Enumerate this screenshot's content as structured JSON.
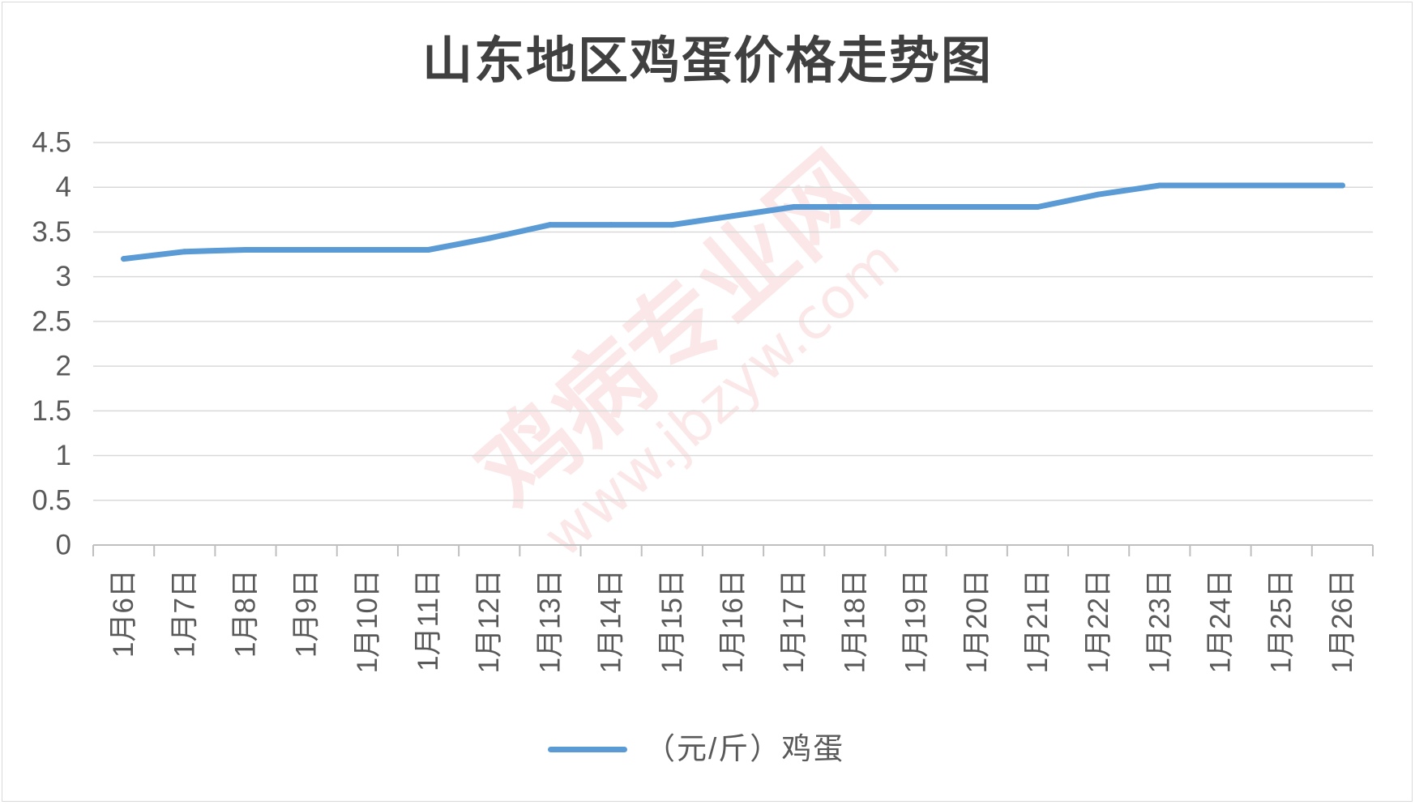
{
  "chart_data": {
    "type": "line",
    "title": "山东地区鸡蛋价格走势图",
    "categories": [
      "1月6日",
      "1月7日",
      "1月8日",
      "1月9日",
      "1月10日",
      "1月11日",
      "1月12日",
      "1月13日",
      "1月14日",
      "1月15日",
      "1月16日",
      "1月17日",
      "1月18日",
      "1月19日",
      "1月20日",
      "1月21日",
      "1月22日",
      "1月23日",
      "1月24日",
      "1月25日",
      "1月26日"
    ],
    "series": [
      {
        "name": "（元/斤）鸡蛋",
        "color": "#5b9bd5",
        "values": [
          3.2,
          3.28,
          3.3,
          3.3,
          3.3,
          3.3,
          3.43,
          3.58,
          3.58,
          3.58,
          3.68,
          3.78,
          3.78,
          3.78,
          3.78,
          3.78,
          3.92,
          4.02,
          4.02,
          4.02,
          4.02
        ]
      }
    ],
    "ylim": [
      0,
      4.5
    ],
    "y_tick_labels": [
      "0",
      "0.5",
      "1",
      "1.5",
      "2",
      "2.5",
      "3",
      "3.5",
      "4",
      "4.5"
    ],
    "grid": true,
    "legend_position": "bottom"
  },
  "colors": {
    "gridline": "#d9d9d9",
    "axis": "#bfbfbf",
    "text": "#595959",
    "title": "#404040",
    "watermark": "#e0454a"
  },
  "watermark": {
    "site_name": "鸡病专业网",
    "url": "www.jbzyw.com"
  }
}
